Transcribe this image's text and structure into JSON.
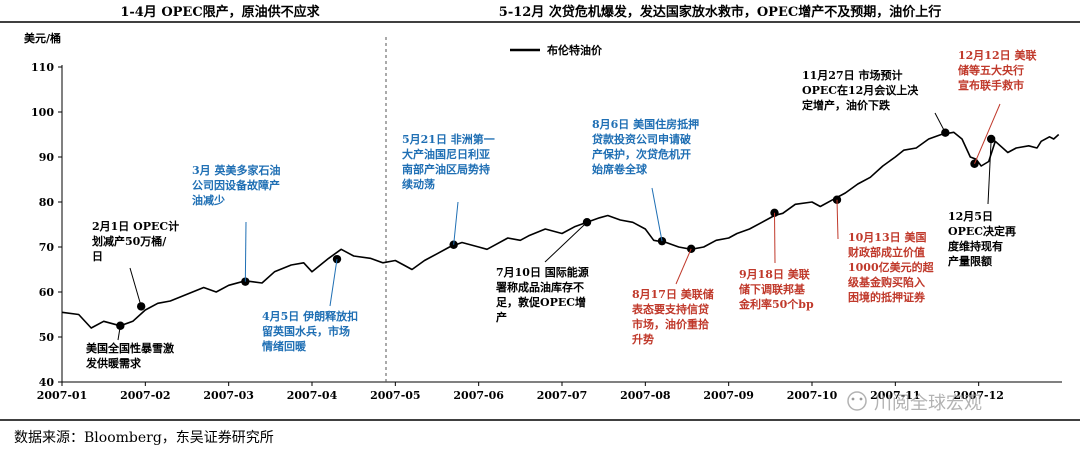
{
  "chart_data": {
    "type": "line",
    "section_left_title": "1-4月  OPEC限产，原油供不应求",
    "section_right_title": "5-12月  次贷危机爆发，发达国家放水救市，OPEC增产不及预期，油价上行",
    "ylabel": "美元/桶",
    "ylim": [
      40,
      110
    ],
    "y_ticks": [
      "40",
      "50",
      "60",
      "70",
      "80",
      "90",
      "100",
      "110"
    ],
    "x_ticks": [
      "2007-01",
      "2007-02",
      "2007-03",
      "2007-04",
      "2007-05",
      "2007-06",
      "2007-07",
      "2007-08",
      "2007-09",
      "2007-10",
      "2007-11",
      "2007-12"
    ],
    "series": [
      {
        "name": "布伦特油价",
        "color": "#000000",
        "values": [
          [
            0.0,
            55.5
          ],
          [
            0.2,
            55.0
          ],
          [
            0.35,
            52.0
          ],
          [
            0.5,
            53.5
          ],
          [
            0.7,
            52.5
          ],
          [
            0.85,
            53.5
          ],
          [
            1.0,
            56.0
          ],
          [
            1.15,
            57.5
          ],
          [
            1.3,
            58.0
          ],
          [
            1.5,
            59.5
          ],
          [
            1.7,
            61.0
          ],
          [
            1.85,
            60.0
          ],
          [
            2.0,
            61.5
          ],
          [
            2.2,
            62.5
          ],
          [
            2.4,
            62.0
          ],
          [
            2.55,
            64.5
          ],
          [
            2.75,
            66.0
          ],
          [
            2.9,
            66.5
          ],
          [
            3.0,
            64.5
          ],
          [
            3.2,
            67.5
          ],
          [
            3.35,
            69.5
          ],
          [
            3.5,
            68.0
          ],
          [
            3.7,
            67.5
          ],
          [
            3.85,
            66.5
          ],
          [
            4.0,
            67.0
          ],
          [
            4.1,
            66.0
          ],
          [
            4.2,
            65.0
          ],
          [
            4.35,
            67.0
          ],
          [
            4.5,
            68.5
          ],
          [
            4.65,
            70.0
          ],
          [
            4.8,
            71.0
          ],
          [
            5.0,
            70.0
          ],
          [
            5.1,
            69.5
          ],
          [
            5.2,
            70.5
          ],
          [
            5.35,
            72.0
          ],
          [
            5.5,
            71.5
          ],
          [
            5.6,
            72.5
          ],
          [
            5.8,
            74.0
          ],
          [
            6.0,
            73.0
          ],
          [
            6.15,
            74.5
          ],
          [
            6.3,
            75.5
          ],
          [
            6.45,
            76.5
          ],
          [
            6.55,
            77.0
          ],
          [
            6.7,
            76.0
          ],
          [
            6.85,
            75.5
          ],
          [
            7.0,
            74.0
          ],
          [
            7.1,
            71.5
          ],
          [
            7.25,
            71.0
          ],
          [
            7.4,
            70.0
          ],
          [
            7.55,
            69.5
          ],
          [
            7.7,
            70.0
          ],
          [
            7.85,
            71.5
          ],
          [
            8.0,
            72.0
          ],
          [
            8.1,
            73.0
          ],
          [
            8.25,
            74.0
          ],
          [
            8.4,
            75.5
          ],
          [
            8.55,
            77.0
          ],
          [
            8.65,
            77.5
          ],
          [
            8.8,
            79.5
          ],
          [
            9.0,
            80.0
          ],
          [
            9.1,
            79.0
          ],
          [
            9.25,
            80.5
          ],
          [
            9.4,
            82.0
          ],
          [
            9.55,
            84.0
          ],
          [
            9.7,
            85.5
          ],
          [
            9.85,
            88.0
          ],
          [
            10.0,
            90.0
          ],
          [
            10.1,
            91.5
          ],
          [
            10.25,
            92.0
          ],
          [
            10.4,
            94.0
          ],
          [
            10.55,
            95.0
          ],
          [
            10.7,
            95.5
          ],
          [
            10.8,
            94.0
          ],
          [
            10.9,
            90.0
          ],
          [
            10.97,
            89.5
          ],
          [
            11.03,
            88.0
          ],
          [
            11.12,
            89.0
          ],
          [
            11.2,
            93.5
          ],
          [
            11.35,
            91.0
          ],
          [
            11.45,
            92.0
          ],
          [
            11.6,
            92.5
          ],
          [
            11.7,
            92.0
          ],
          [
            11.75,
            93.5
          ],
          [
            11.85,
            94.5
          ],
          [
            11.9,
            94.0
          ],
          [
            11.96,
            95.0
          ]
        ]
      }
    ],
    "markers": [
      {
        "x": 0.7,
        "y": 52.5
      },
      {
        "x": 0.95,
        "y": 56.8
      },
      {
        "x": 2.2,
        "y": 62.3
      },
      {
        "x": 3.3,
        "y": 67.3
      },
      {
        "x": 4.7,
        "y": 70.5
      },
      {
        "x": 6.3,
        "y": 75.5
      },
      {
        "x": 7.2,
        "y": 71.3
      },
      {
        "x": 7.55,
        "y": 69.6
      },
      {
        "x": 8.55,
        "y": 77.6
      },
      {
        "x": 9.3,
        "y": 80.5
      },
      {
        "x": 10.6,
        "y": 95.4
      },
      {
        "x": 10.95,
        "y": 88.5
      },
      {
        "x": 11.15,
        "y": 94.0
      }
    ],
    "annotations": [
      {
        "color": "#000000",
        "lines": [
          "2月1日 OPEC计",
          "划减产50万桶/",
          "日"
        ]
      },
      {
        "color": "#000000",
        "lines": [
          "美国全国性暴雪激",
          "发供暖需求"
        ]
      },
      {
        "color": "#1f6fb4",
        "lines": [
          "3月  英美多家石油",
          "公司因设备故障产",
          "油减少"
        ]
      },
      {
        "color": "#1f6fb4",
        "lines": [
          "4月5日  伊朗释放扣",
          "留英国水兵，市场",
          "情绪回暖"
        ]
      },
      {
        "color": "#1f6fb4",
        "lines": [
          "5月21日  非洲第一",
          "大产油国尼日利亚",
          "南部产油区局势持",
          "续动荡"
        ]
      },
      {
        "color": "#000000",
        "lines": [
          "7月10日  国际能源",
          "署称成品油库存不",
          "足，敦促OPEC增",
          "产"
        ]
      },
      {
        "color": "#1f6fb4",
        "lines": [
          "8月6日  美国住房抵押",
          "贷款投资公司申请破",
          "产保护，次贷危机开",
          "始席卷全球"
        ]
      },
      {
        "color": "#c0392b",
        "lines": [
          "8月17日  美联储",
          "表态要支持信贷",
          "市场，油价重拾",
          "升势"
        ]
      },
      {
        "color": "#c0392b",
        "lines": [
          "9月18日  美联",
          "储下调联邦基",
          "金利率50个bp"
        ]
      },
      {
        "color": "#c0392b",
        "lines": [
          "10月13日  美国",
          "财政部成立价值",
          "1000亿美元的超",
          "级基金购买陷入",
          "困境的抵押证券"
        ]
      },
      {
        "color": "#000000",
        "lines": [
          "11月27日  市场预计",
          "OPEC在12月会议上决",
          "定增产，油价下跌"
        ]
      },
      {
        "color": "#c0392b",
        "lines": [
          "12月12日  美联",
          "储等五大央行",
          "宣布联手救市"
        ]
      },
      {
        "color": "#000000",
        "lines": [
          "12月5日",
          "OPEC决定再",
          "度维持现有",
          "产量限额"
        ]
      }
    ]
  },
  "source_text": "数据来源：Bloomberg，东吴证券研究所",
  "watermark_text": "川阅全球宏观",
  "colors": {
    "line": "#000000",
    "blue": "#1f6fb4",
    "red": "#c0392b"
  }
}
